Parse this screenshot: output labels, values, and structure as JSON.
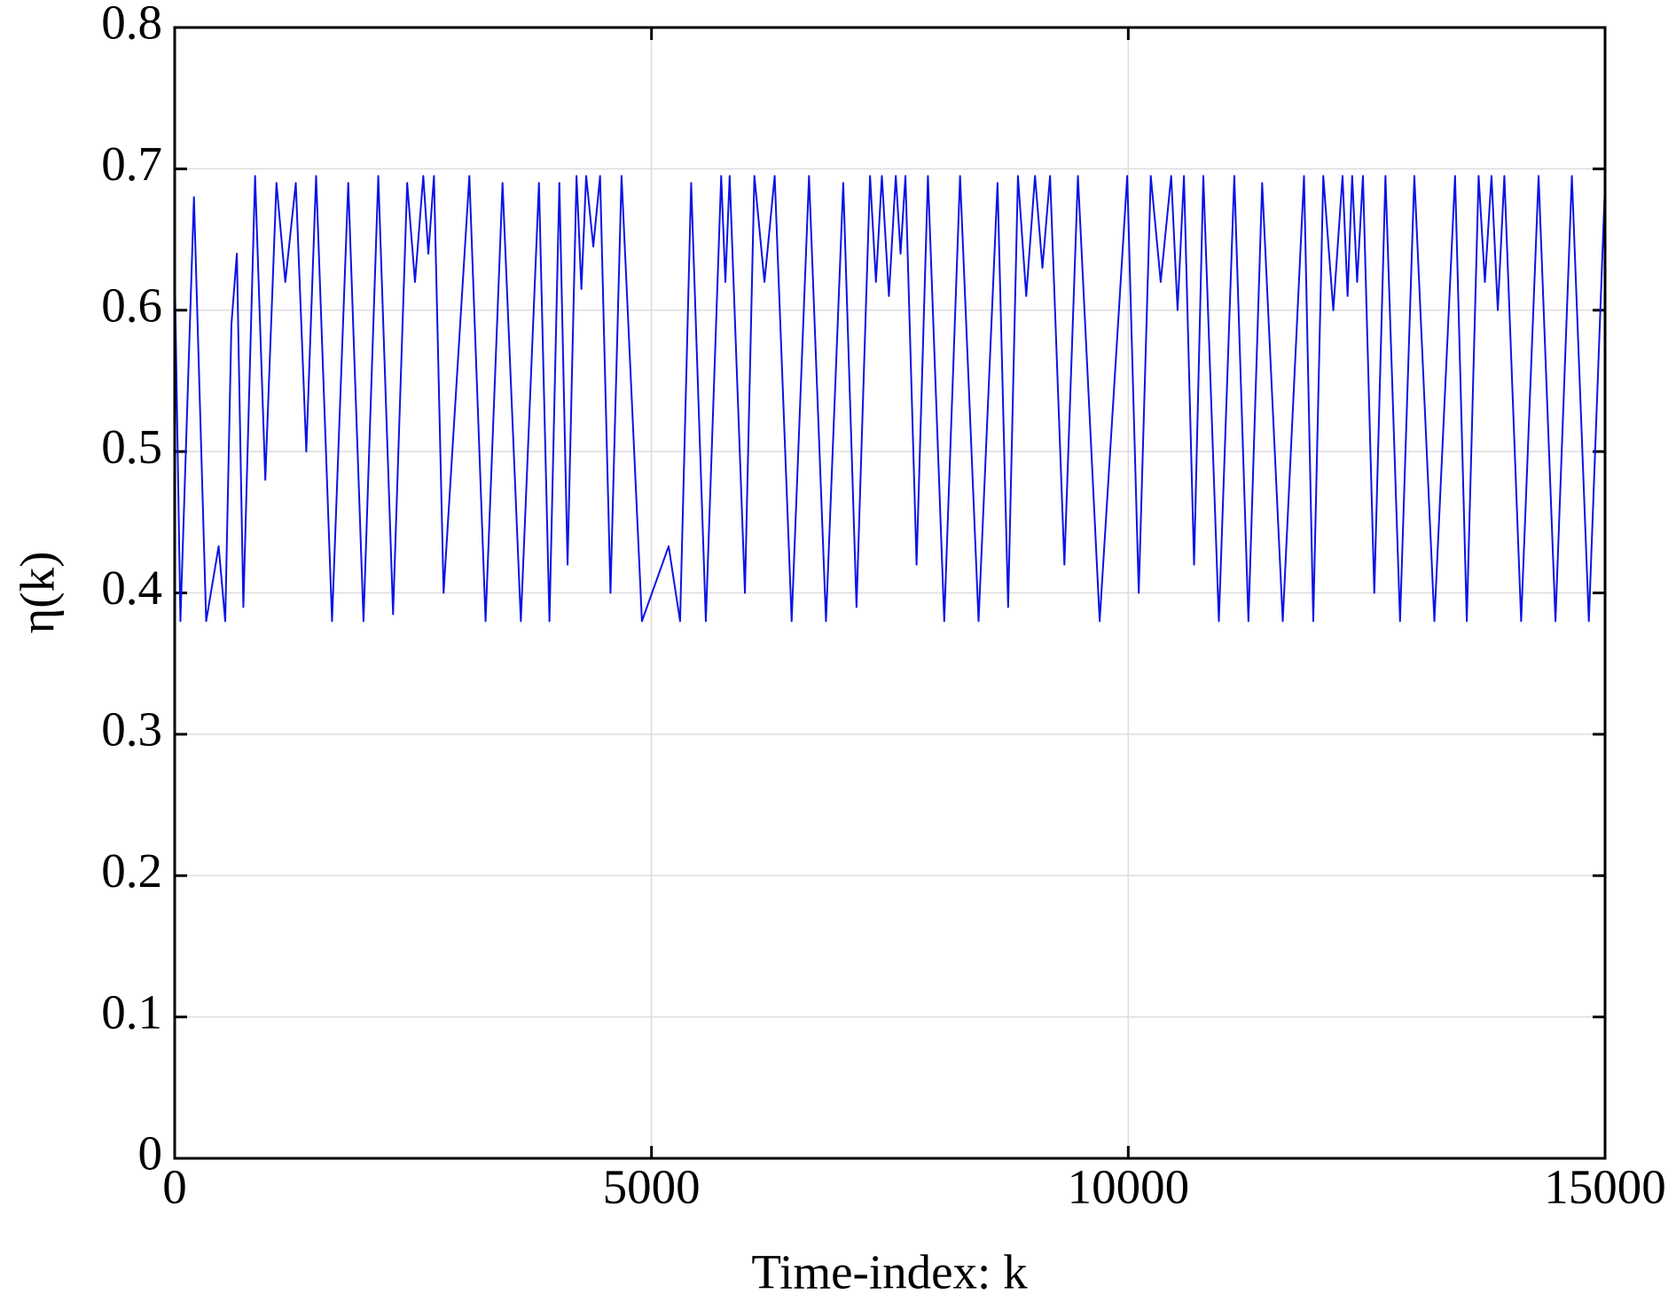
{
  "chart_data": {
    "type": "line",
    "xlabel": "Time-index: k",
    "ylabel": "η(k)",
    "xlim": [
      0,
      15000
    ],
    "xticks": [
      0,
      5000,
      10000,
      15000
    ],
    "ylim": [
      0,
      0.8
    ],
    "yticks": [
      0,
      0.1,
      0.2,
      0.3,
      0.4,
      0.5,
      0.6,
      0.7,
      0.8
    ],
    "grid": true,
    "color": "#0a14e6",
    "x": [
      0,
      60,
      202,
      330,
      461,
      530,
      595,
      652,
      720,
      843,
      950,
      1067,
      1160,
      1270,
      1380,
      1483,
      1650,
      1820,
      1980,
      2135,
      2290,
      2438,
      2520,
      2607,
      2660,
      2719,
      2820,
      3090,
      3260,
      3438,
      3630,
      3820,
      3930,
      4034,
      4120,
      4214,
      4265,
      4315,
      4390,
      4461,
      4570,
      4686,
      4900,
      5180,
      5300,
      5416,
      5570,
      5731,
      5775,
      5820,
      5980,
      6079,
      6185,
      6292,
      6470,
      6652,
      6830,
      7011,
      7150,
      7292,
      7354,
      7416,
      7490,
      7562,
      7612,
      7663,
      7780,
      7899,
      8070,
      8236,
      8430,
      8629,
      8740,
      8843,
      8930,
      9022,
      9100,
      9180,
      9330,
      9472,
      9700,
      9989,
      10110,
      10236,
      10340,
      10450,
      10517,
      10584,
      10690,
      10787,
      10950,
      11112,
      11260,
      11404,
      11620,
      11843,
      11940,
      12045,
      12150,
      12247,
      12300,
      12348,
      12400,
      12461,
      12580,
      12697,
      12850,
      13000,
      13210,
      13427,
      13550,
      13674,
      13740,
      13809,
      13875,
      13944,
      14120,
      14303,
      14480,
      14652,
      14830,
      15000
    ],
    "values": [
      0.63,
      0.38,
      0.68,
      0.38,
      0.433,
      0.38,
      0.59,
      0.64,
      0.39,
      0.695,
      0.48,
      0.69,
      0.62,
      0.69,
      0.5,
      0.695,
      0.38,
      0.69,
      0.38,
      0.695,
      0.385,
      0.69,
      0.62,
      0.695,
      0.64,
      0.695,
      0.4,
      0.695,
      0.38,
      0.69,
      0.38,
      0.69,
      0.38,
      0.69,
      0.42,
      0.695,
      0.615,
      0.695,
      0.645,
      0.695,
      0.4,
      0.695,
      0.38,
      0.433,
      0.38,
      0.69,
      0.38,
      0.695,
      0.62,
      0.695,
      0.4,
      0.695,
      0.62,
      0.695,
      0.38,
      0.695,
      0.38,
      0.69,
      0.39,
      0.695,
      0.62,
      0.695,
      0.61,
      0.695,
      0.64,
      0.695,
      0.42,
      0.695,
      0.38,
      0.695,
      0.38,
      0.69,
      0.39,
      0.695,
      0.61,
      0.695,
      0.63,
      0.695,
      0.42,
      0.695,
      0.38,
      0.695,
      0.4,
      0.695,
      0.62,
      0.695,
      0.6,
      0.695,
      0.42,
      0.695,
      0.38,
      0.695,
      0.38,
      0.69,
      0.38,
      0.695,
      0.38,
      0.695,
      0.6,
      0.695,
      0.61,
      0.695,
      0.62,
      0.695,
      0.4,
      0.695,
      0.38,
      0.695,
      0.38,
      0.695,
      0.38,
      0.695,
      0.62,
      0.695,
      0.6,
      0.695,
      0.38,
      0.695,
      0.38,
      0.695,
      0.38,
      0.69
    ]
  }
}
